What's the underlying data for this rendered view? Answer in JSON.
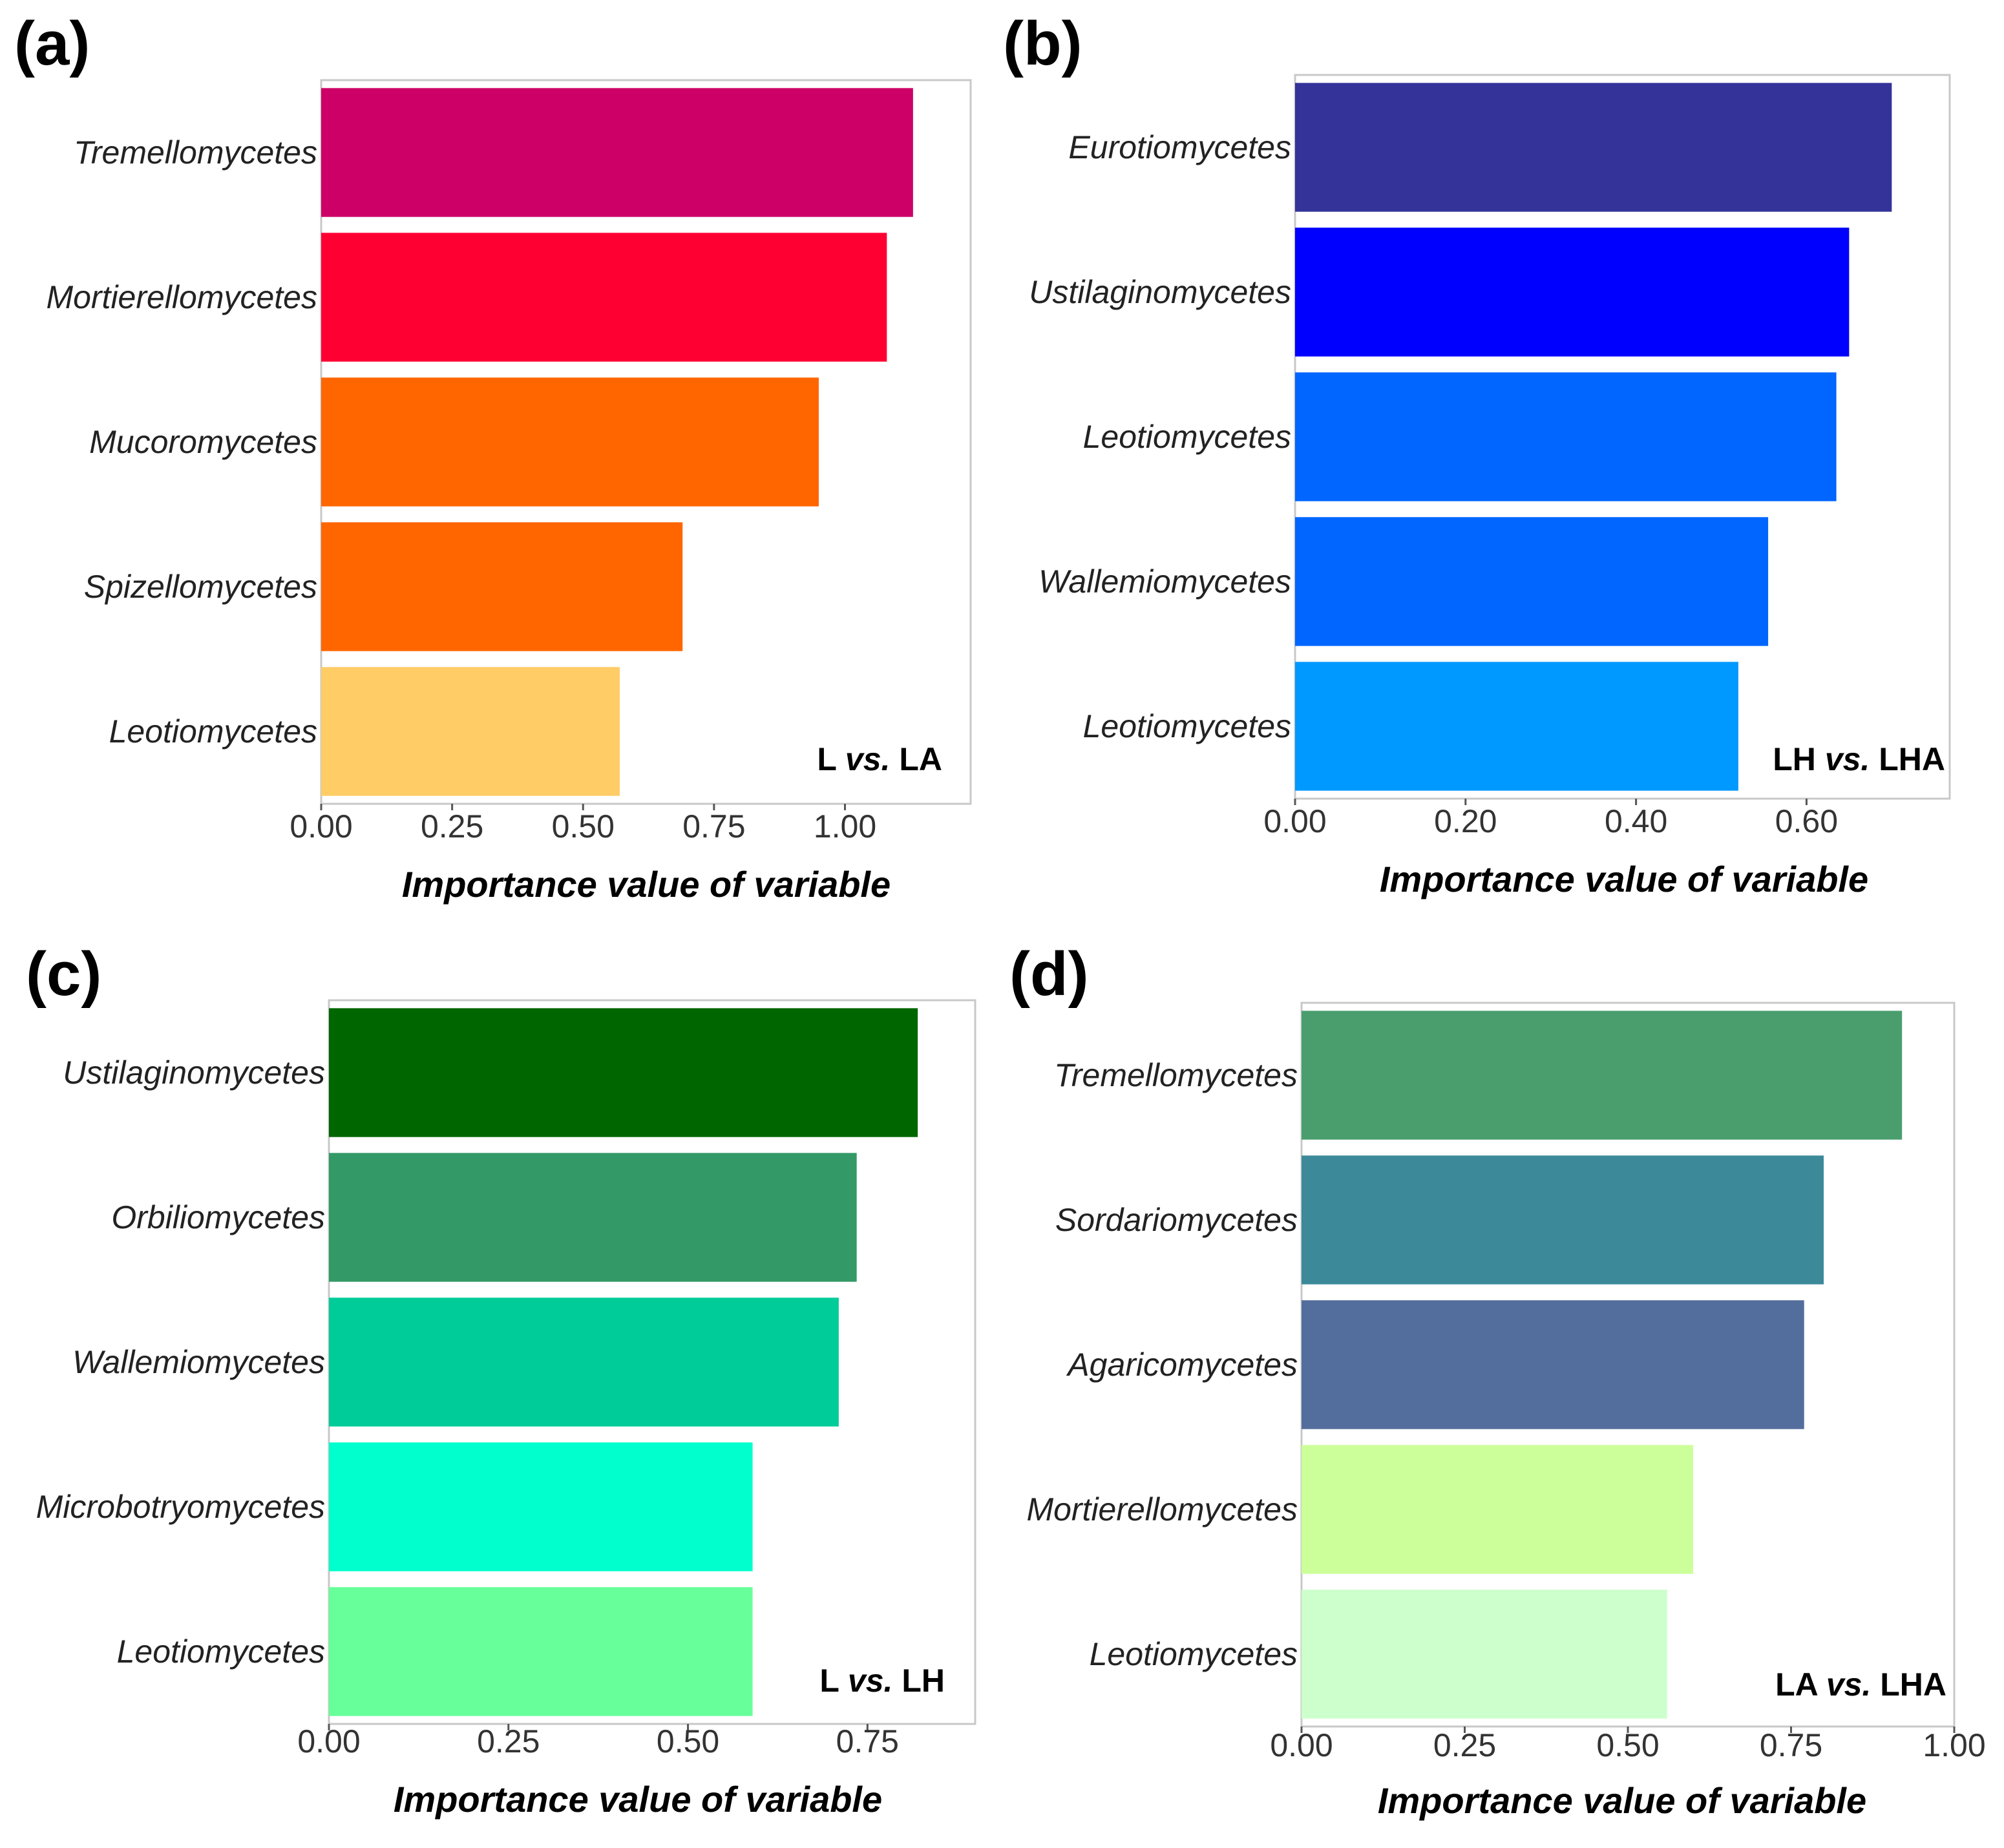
{
  "chart_data": [
    {
      "type": "bar",
      "orientation": "horizontal",
      "panel_label": "(a)",
      "comparison": {
        "left": "L",
        "vs": "vs.",
        "right": "LA"
      },
      "categories": [
        "Tremellomycetes",
        "Mortierellomycetes",
        "Mucoromycetes",
        "Spizellomycetes",
        "Leotiomycetes"
      ],
      "values": [
        1.13,
        1.08,
        0.95,
        0.69,
        0.57
      ],
      "colors": [
        "#cc0066",
        "#ff0033",
        "#ff6600",
        "#ff6600",
        "#ffcc66"
      ],
      "xticks": [
        "0.00",
        "0.25",
        "0.50",
        "0.75",
        "1.00"
      ],
      "tick_values": [
        0,
        0.25,
        0.5,
        0.75,
        1.0
      ],
      "xlim": [
        0,
        1.24
      ],
      "xlabel": "Importance value of variable",
      "ylabel": ""
    },
    {
      "type": "bar",
      "orientation": "horizontal",
      "panel_label": "(b)",
      "comparison": {
        "left": "LH",
        "vs": "vs.",
        "right": "LHA"
      },
      "categories": [
        "Eurotiomycetes",
        "Ustilaginomycetes",
        "Leotiomycetes",
        "Wallemiomycetes",
        "Leotiomycetes"
      ],
      "values": [
        0.7,
        0.65,
        0.635,
        0.555,
        0.52
      ],
      "colors": [
        "#333399",
        "#0000ff",
        "#0066ff",
        "#0066ff",
        "#0099ff"
      ],
      "xticks": [
        "0.00",
        "0.20",
        "0.40",
        "0.60"
      ],
      "tick_values": [
        0,
        0.2,
        0.4,
        0.6
      ],
      "xlim": [
        0,
        0.768
      ],
      "xlabel": "Importance value of variable",
      "ylabel": ""
    },
    {
      "type": "bar",
      "orientation": "horizontal",
      "panel_label": "(c)",
      "comparison": {
        "left": "L",
        "vs": "vs.",
        "right": "LH"
      },
      "categories": [
        "Ustilaginomycetes",
        "Orbiliomycetes",
        "Wallemiomycetes",
        "Microbotryomycetes",
        "Leotiomycetes"
      ],
      "values": [
        0.82,
        0.735,
        0.71,
        0.59,
        0.59
      ],
      "colors": [
        "#006600",
        "#339966",
        "#00cc99",
        "#00ffcc",
        "#66ff99"
      ],
      "xticks": [
        "0.00",
        "0.25",
        "0.50",
        "0.75"
      ],
      "tick_values": [
        0,
        0.25,
        0.5,
        0.75
      ],
      "xlim": [
        0,
        0.9
      ],
      "xlabel": "Importance value of variable",
      "ylabel": ""
    },
    {
      "type": "bar",
      "orientation": "horizontal",
      "panel_label": "(d)",
      "comparison": {
        "left": "LA",
        "vs": "vs.",
        "right": "LHA"
      },
      "categories": [
        "Tremellomycetes",
        "Sordariomycetes",
        "Agaricomycetes",
        "Mortierellomycetes",
        "Leotiomycetes"
      ],
      "values": [
        0.92,
        0.8,
        0.77,
        0.6,
        0.56
      ],
      "colors": [
        "#4a9e6e",
        "#3b8999",
        "#536d9c",
        "#ccff99",
        "#ccffcc"
      ],
      "xticks": [
        "0.00",
        "0.25",
        "0.50",
        "0.75",
        "1.00"
      ],
      "tick_values": [
        0,
        0.25,
        0.5,
        0.75,
        1.0
      ],
      "xlim": [
        0,
        1.0
      ],
      "xlabel": "Importance value of variable",
      "ylabel": ""
    }
  ]
}
